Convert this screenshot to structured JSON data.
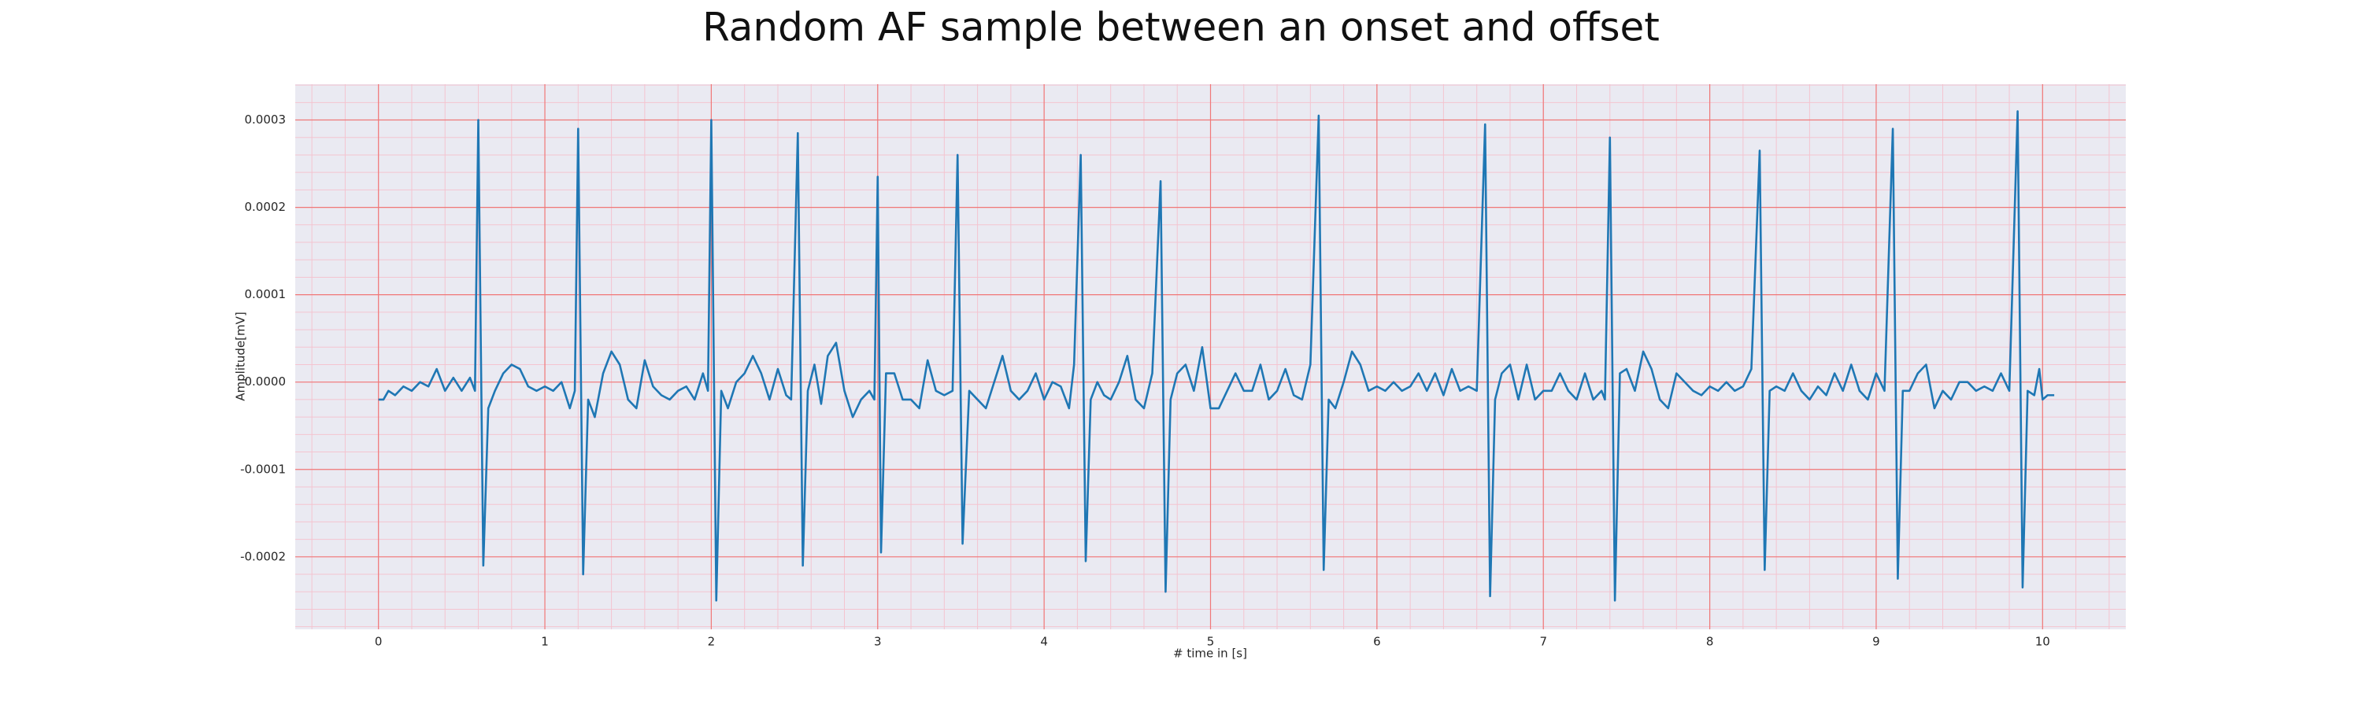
{
  "chart_data": {
    "type": "line",
    "title": "Random AF sample between an onset and offset",
    "xlabel": "# time in [s]",
    "ylabel": "Amplitude[mV]",
    "color": "#1f77b4",
    "grid": true,
    "minor_grid": true,
    "xlim": [
      -0.5,
      10.5
    ],
    "xticks": [
      0,
      1,
      2,
      3,
      4,
      5,
      6,
      7,
      8,
      9,
      10
    ],
    "ylim": [
      -0.000283,
      0.000341
    ],
    "yticks": [
      -0.0002,
      -0.0001,
      {
        "value": 0,
        "label": "0.0000"
      },
      0.0001,
      0.0002,
      0.0003
    ],
    "x": [
      0,
      0.03,
      0.06,
      0.1,
      0.15,
      0.2,
      0.25,
      0.3,
      0.35,
      0.4,
      0.45,
      0.5,
      0.55,
      0.58,
      0.6,
      0.63,
      0.66,
      0.7,
      0.75,
      0.8,
      0.85,
      0.9,
      0.95,
      1.0,
      1.05,
      1.1,
      1.15,
      1.18,
      1.2,
      1.23,
      1.26,
      1.3,
      1.35,
      1.4,
      1.45,
      1.5,
      1.55,
      1.6,
      1.65,
      1.7,
      1.75,
      1.8,
      1.85,
      1.9,
      1.95,
      1.98,
      2.0,
      2.03,
      2.06,
      2.1,
      2.15,
      2.2,
      2.25,
      2.3,
      2.35,
      2.4,
      2.45,
      2.48,
      2.52,
      2.55,
      2.58,
      2.62,
      2.66,
      2.7,
      2.75,
      2.8,
      2.85,
      2.9,
      2.95,
      2.98,
      3.0,
      3.02,
      3.05,
      3.1,
      3.15,
      3.2,
      3.25,
      3.3,
      3.35,
      3.4,
      3.45,
      3.48,
      3.51,
      3.55,
      3.6,
      3.65,
      3.7,
      3.75,
      3.8,
      3.85,
      3.9,
      3.95,
      4.0,
      4.05,
      4.1,
      4.15,
      4.18,
      4.22,
      4.25,
      4.28,
      4.32,
      4.36,
      4.4,
      4.45,
      4.5,
      4.55,
      4.6,
      4.65,
      4.7,
      4.73,
      4.76,
      4.8,
      4.85,
      4.9,
      4.95,
      5.0,
      5.05,
      5.1,
      5.15,
      5.2,
      5.25,
      5.3,
      5.35,
      5.4,
      5.45,
      5.5,
      5.55,
      5.6,
      5.65,
      5.68,
      5.71,
      5.75,
      5.8,
      5.85,
      5.9,
      5.95,
      6.0,
      6.05,
      6.1,
      6.15,
      6.2,
      6.25,
      6.3,
      6.35,
      6.4,
      6.45,
      6.5,
      6.55,
      6.6,
      6.65,
      6.68,
      6.71,
      6.75,
      6.8,
      6.85,
      6.9,
      6.95,
      7.0,
      7.05,
      7.1,
      7.15,
      7.2,
      7.25,
      7.3,
      7.35,
      7.37,
      7.4,
      7.43,
      7.46,
      7.5,
      7.55,
      7.6,
      7.65,
      7.7,
      7.75,
      7.8,
      7.85,
      7.9,
      7.95,
      8.0,
      8.05,
      8.1,
      8.15,
      8.2,
      8.25,
      8.3,
      8.33,
      8.36,
      8.4,
      8.45,
      8.5,
      8.55,
      8.6,
      8.65,
      8.7,
      8.75,
      8.8,
      8.85,
      8.9,
      8.95,
      9.0,
      9.05,
      9.1,
      9.13,
      9.16,
      9.2,
      9.25,
      9.3,
      9.35,
      9.4,
      9.45,
      9.5,
      9.55,
      9.6,
      9.65,
      9.7,
      9.75,
      9.8,
      9.85,
      9.88,
      9.91,
      9.95,
      9.98,
      10.0,
      10.03,
      10.07
    ],
    "values": [
      -2e-05,
      -2e-05,
      -1e-05,
      -1.5e-05,
      -5e-06,
      -1e-05,
      0,
      -5e-06,
      1.5e-05,
      -1e-05,
      5e-06,
      -1e-05,
      5e-06,
      -1e-05,
      0.0003,
      -0.00021,
      -3e-05,
      -1e-05,
      1e-05,
      2e-05,
      1.5e-05,
      -5e-06,
      -1e-05,
      -5e-06,
      -1e-05,
      0,
      -3e-05,
      -1e-05,
      0.00029,
      -0.00022,
      -2e-05,
      -4e-05,
      1e-05,
      3.5e-05,
      2e-05,
      -2e-05,
      -3e-05,
      2.5e-05,
      -5e-06,
      -1.5e-05,
      -2e-05,
      -1e-05,
      -5e-06,
      -2e-05,
      1e-05,
      -1e-05,
      0.0003,
      -0.00025,
      -1e-05,
      -3e-05,
      0,
      1e-05,
      3e-05,
      1e-05,
      -2e-05,
      1.5e-05,
      -1.5e-05,
      -2e-05,
      0.000285,
      -0.00021,
      -1e-05,
      2e-05,
      -2.5e-05,
      3e-05,
      4.5e-05,
      -1e-05,
      -4e-05,
      -2e-05,
      -1e-05,
      -2e-05,
      0.000235,
      -0.000195,
      1e-05,
      1e-05,
      -2e-05,
      -2e-05,
      -3e-05,
      2.5e-05,
      -1e-05,
      -1.5e-05,
      -1e-05,
      0.00026,
      -0.000185,
      -1e-05,
      -2e-05,
      -3e-05,
      0,
      3e-05,
      -1e-05,
      -2e-05,
      -1e-05,
      1e-05,
      -2e-05,
      0,
      -5e-06,
      -3e-05,
      2e-05,
      0.00026,
      -0.000205,
      -2e-05,
      0,
      -1.5e-05,
      -2e-05,
      0,
      3e-05,
      -2e-05,
      -3e-05,
      1e-05,
      0.00023,
      -0.00024,
      -2e-05,
      1e-05,
      2e-05,
      -1e-05,
      4e-05,
      -3e-05,
      -3e-05,
      -1e-05,
      1e-05,
      -1e-05,
      -1e-05,
      2e-05,
      -2e-05,
      -1e-05,
      1.5e-05,
      -1.5e-05,
      -2e-05,
      2e-05,
      0.000305,
      -0.000215,
      -2e-05,
      -3e-05,
      0,
      3.5e-05,
      2e-05,
      -1e-05,
      -5e-06,
      -1e-05,
      0,
      -1e-05,
      -5e-06,
      1e-05,
      -1e-05,
      1e-05,
      -1.5e-05,
      1.5e-05,
      -1e-05,
      -5e-06,
      -1e-05,
      0.000295,
      -0.000245,
      -2e-05,
      1e-05,
      2e-05,
      -2e-05,
      2e-05,
      -2e-05,
      -1e-05,
      -1e-05,
      1e-05,
      -1e-05,
      -2e-05,
      1e-05,
      -2e-05,
      -1e-05,
      -2e-05,
      0.00028,
      -0.00025,
      1e-05,
      1.5e-05,
      -1e-05,
      3.5e-05,
      1.5e-05,
      -2e-05,
      -3e-05,
      1e-05,
      0,
      -1e-05,
      -1.5e-05,
      -5e-06,
      -1e-05,
      0,
      -1e-05,
      -5e-06,
      1.5e-05,
      0.000265,
      -0.000215,
      -1e-05,
      -5e-06,
      -1e-05,
      1e-05,
      -1e-05,
      -2e-05,
      -5e-06,
      -1.5e-05,
      1e-05,
      -1e-05,
      2e-05,
      -1e-05,
      -2e-05,
      1e-05,
      -1e-05,
      0.00029,
      -0.000225,
      -1e-05,
      -1e-05,
      1e-05,
      2e-05,
      -3e-05,
      -1e-05,
      -2e-05,
      0,
      0,
      -1e-05,
      -5e-06,
      -1e-05,
      1e-05,
      -1e-05,
      0.00031,
      -0.000235,
      -1e-05,
      -1.5e-05,
      1.5e-05,
      -2e-05,
      -1.5e-05,
      -1.5e-05
    ]
  }
}
